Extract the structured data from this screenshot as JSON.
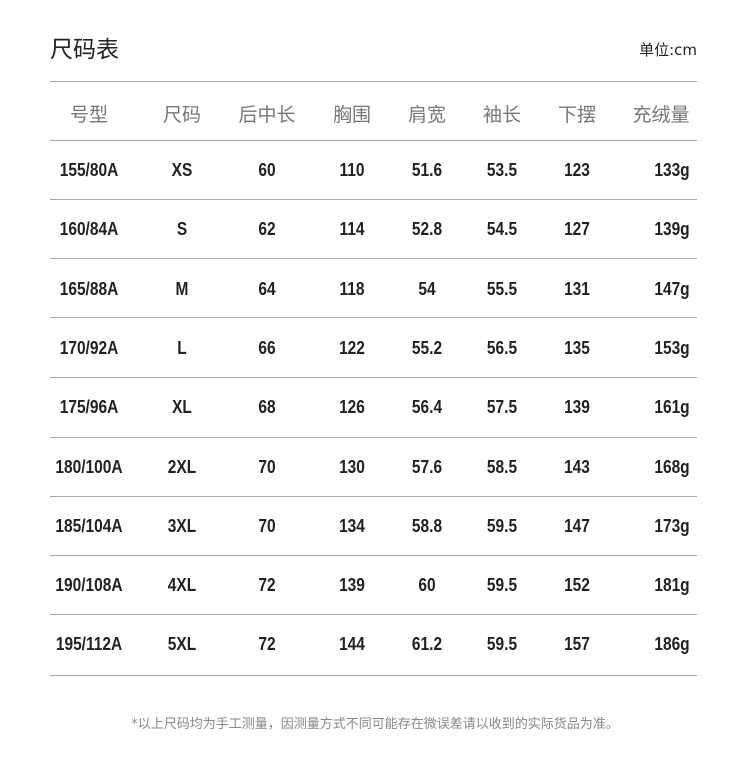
{
  "title": "尺码表",
  "unit": "单位:cm",
  "table": {
    "headers": [
      "号型",
      "尺码",
      "后中长",
      "胸围",
      "肩宽",
      "袖长",
      "下摆",
      "充绒量"
    ],
    "rows": [
      [
        "155/80A",
        "XS",
        "60",
        "110",
        "51.6",
        "53.5",
        "123",
        "133g"
      ],
      [
        "160/84A",
        "S",
        "62",
        "114",
        "52.8",
        "54.5",
        "127",
        "139g"
      ],
      [
        "165/88A",
        "M",
        "64",
        "118",
        "54",
        "55.5",
        "131",
        "147g"
      ],
      [
        "170/92A",
        "L",
        "66",
        "122",
        "55.2",
        "56.5",
        "135",
        "153g"
      ],
      [
        "175/96A",
        "XL",
        "68",
        "126",
        "56.4",
        "57.5",
        "139",
        "161g"
      ],
      [
        "180/100A",
        "2XL",
        "70",
        "130",
        "57.6",
        "58.5",
        "143",
        "168g"
      ],
      [
        "185/104A",
        "3XL",
        "70",
        "134",
        "58.8",
        "59.5",
        "147",
        "173g"
      ],
      [
        "190/108A",
        "4XL",
        "72",
        "139",
        "60",
        "59.5",
        "152",
        "181g"
      ],
      [
        "195/112A",
        "5XL",
        "72",
        "144",
        "61.2",
        "59.5",
        "157",
        "186g"
      ]
    ]
  },
  "footnote": "*以上尺码均为手工测量，因测量方式不同可能存在微误差请以收到的实际货品为准。"
}
